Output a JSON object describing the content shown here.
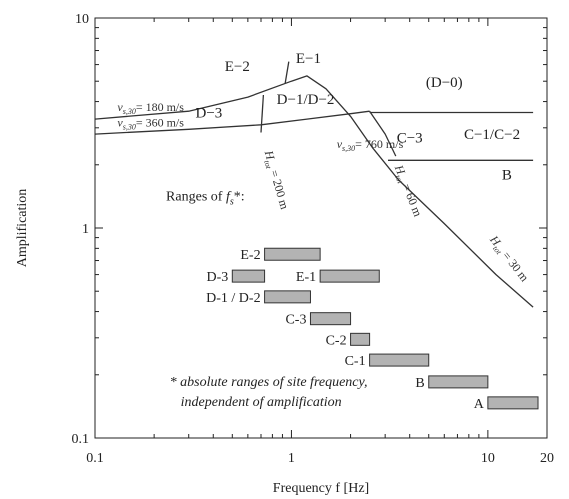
{
  "chart_data": {
    "type": "line",
    "title": "",
    "xlabel": "Frequency f [Hz]",
    "ylabel": "Amplification",
    "xscale": "log",
    "yscale": "log",
    "xlim": [
      0.1,
      20
    ],
    "ylim": [
      0.1,
      10
    ],
    "x_ticks": [
      {
        "v": 0.1,
        "label": "0.1"
      },
      {
        "v": 1,
        "label": "1"
      },
      {
        "v": 10,
        "label": "10"
      },
      {
        "v": 20,
        "label": "20"
      }
    ],
    "y_ticks": [
      {
        "v": 0.1,
        "label": "0.1"
      },
      {
        "v": 1,
        "label": "1"
      },
      {
        "v": 10,
        "label": "10"
      }
    ],
    "curves": [
      {
        "x": [
          0.1,
          0.3,
          0.6,
          1.0,
          1.2,
          1.5,
          2.0,
          2.6,
          3.5,
          6.0,
          11.0,
          17.0
        ],
        "y": [
          3.3,
          3.6,
          4.2,
          5.0,
          5.3,
          4.6,
          3.4,
          2.4,
          1.7,
          1.05,
          0.6,
          0.42
        ]
      },
      {
        "x": [
          0.1,
          0.3,
          0.7,
          1.2,
          2.0,
          2.5
        ],
        "y": [
          2.8,
          2.95,
          3.1,
          3.3,
          3.5,
          3.6
        ]
      },
      {
        "x": [
          2.5,
          3.0,
          3.4
        ],
        "y": [
          3.6,
          2.8,
          2.2
        ]
      },
      {
        "x": [
          3.1,
          17.0
        ],
        "y": [
          2.1,
          2.1
        ]
      },
      {
        "x": [
          2.5,
          17.0
        ],
        "y": [
          3.55,
          3.55
        ]
      },
      {
        "x": [
          0.72,
          0.7
        ],
        "y": [
          4.3,
          2.85
        ]
      },
      {
        "x": [
          0.97,
          0.93
        ],
        "y": [
          6.2,
          4.9
        ]
      }
    ],
    "zone_labels": [
      {
        "text": "E−2",
        "x": 0.53,
        "y": 5.6
      },
      {
        "text": "E−1",
        "x": 1.22,
        "y": 6.1
      },
      {
        "text": "(D−0)",
        "x": 6.0,
        "y": 4.7
      },
      {
        "text": "D−1/D−2",
        "x": 1.18,
        "y": 3.9
      },
      {
        "text": "D−3",
        "x": 0.38,
        "y": 3.35
      },
      {
        "text": "C−3",
        "x": 4.0,
        "y": 2.55
      },
      {
        "text": "C−1/C−2",
        "x": 10.5,
        "y": 2.65
      },
      {
        "text": "B",
        "x": 12.5,
        "y": 1.7
      }
    ],
    "curve_labels": [
      {
        "text": "v",
        "sub": "s,30",
        "rest": "= 180 m/s",
        "x": 0.13,
        "y": 3.6
      },
      {
        "text": "v",
        "sub": "s,30",
        "rest": "= 360 m/s",
        "x": 0.13,
        "y": 3.05
      },
      {
        "text": "v",
        "sub": "s,30",
        "rest": "= 760 m/s",
        "x": 1.7,
        "y": 2.4
      }
    ],
    "rotated_labels": [
      {
        "text": "H",
        "sub": "tot",
        "rest": " = 200 m",
        "x": 0.73,
        "y": 2.3,
        "angle": 74
      },
      {
        "text": "H",
        "sub": "tot",
        "rest": " = 60 m",
        "x": 3.35,
        "y": 1.95,
        "angle": 68
      },
      {
        "text": "H",
        "sub": "tot",
        "rest": " = 30 m",
        "x": 10.2,
        "y": 0.88,
        "angle": 52
      }
    ],
    "ranges_heading": {
      "prefix": "Ranges of ",
      "symbol": "f",
      "sub": "s",
      "suffix": "*:",
      "x": 0.23,
      "y": 1.35
    },
    "ranges": [
      {
        "label": "E-2",
        "x0": 0.73,
        "x1": 1.4,
        "y": 0.75
      },
      {
        "label": "D-3",
        "x0": 0.5,
        "x1": 0.73,
        "y": 0.59
      },
      {
        "label": "E-1",
        "x0": 1.4,
        "x1": 2.8,
        "y": 0.59
      },
      {
        "label": "D-1 / D-2",
        "x0": 0.73,
        "x1": 1.25,
        "y": 0.47
      },
      {
        "label": "C-3",
        "x0": 1.25,
        "x1": 2.0,
        "y": 0.37
      },
      {
        "label": "C-2",
        "x0": 2.0,
        "x1": 2.5,
        "y": 0.295
      },
      {
        "label": "C-1",
        "x0": 2.5,
        "x1": 5.0,
        "y": 0.235
      },
      {
        "label": "B",
        "x0": 5.0,
        "x1": 10.0,
        "y": 0.185
      },
      {
        "label": "A",
        "x0": 10.0,
        "x1": 18.0,
        "y": 0.147
      }
    ],
    "footnote": [
      "* absolute ranges of site frequency,",
      "independent of amplification"
    ],
    "colors": {
      "curve": "#333333",
      "bar_fill": "#b3b3b3",
      "bar_stroke": "#333333",
      "axis": "#222222"
    }
  }
}
